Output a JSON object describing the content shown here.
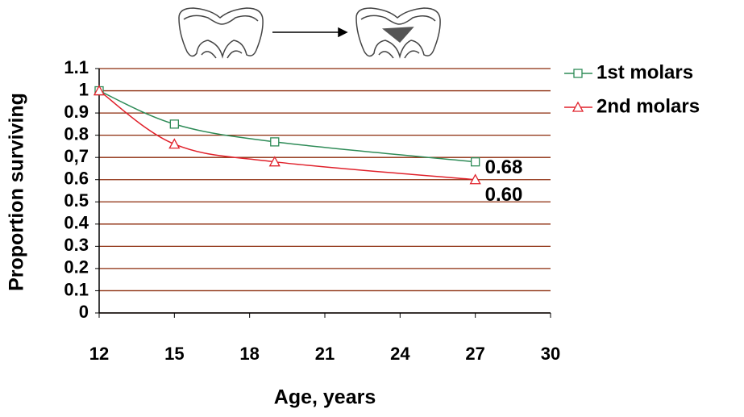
{
  "chart_data": {
    "type": "line",
    "x_label": "Age, years",
    "y_label": "Proportion surviving",
    "series": [
      {
        "name": "1st molars",
        "color": "#2e8b57",
        "marker": "square",
        "x": [
          12,
          15,
          19,
          27
        ],
        "values": [
          1,
          0.85,
          0.77,
          0.68
        ]
      },
      {
        "name": "2nd molars",
        "color": "#e0202a",
        "marker": "triangle",
        "x": [
          12,
          15,
          19,
          27
        ],
        "values": [
          1,
          0.76,
          0.68,
          0.6
        ],
        "value_labels": [
          null,
          null,
          null,
          "0.60"
        ]
      }
    ],
    "xlim": [
      12,
      30
    ],
    "xticks": [
      12,
      15,
      18,
      21,
      24,
      27,
      30
    ],
    "ylim": [
      0,
      1.1
    ],
    "yticks": [
      0,
      0.1,
      0.2,
      0.3,
      0.4,
      0.5,
      0.6,
      {
        "value": 0.7,
        "label": "0,7"
      },
      0.8,
      0.9,
      1,
      1.1
    ],
    "grid": true,
    "grid_color": "#8b2a0a",
    "legend": "right",
    "smooth": true
  }
}
